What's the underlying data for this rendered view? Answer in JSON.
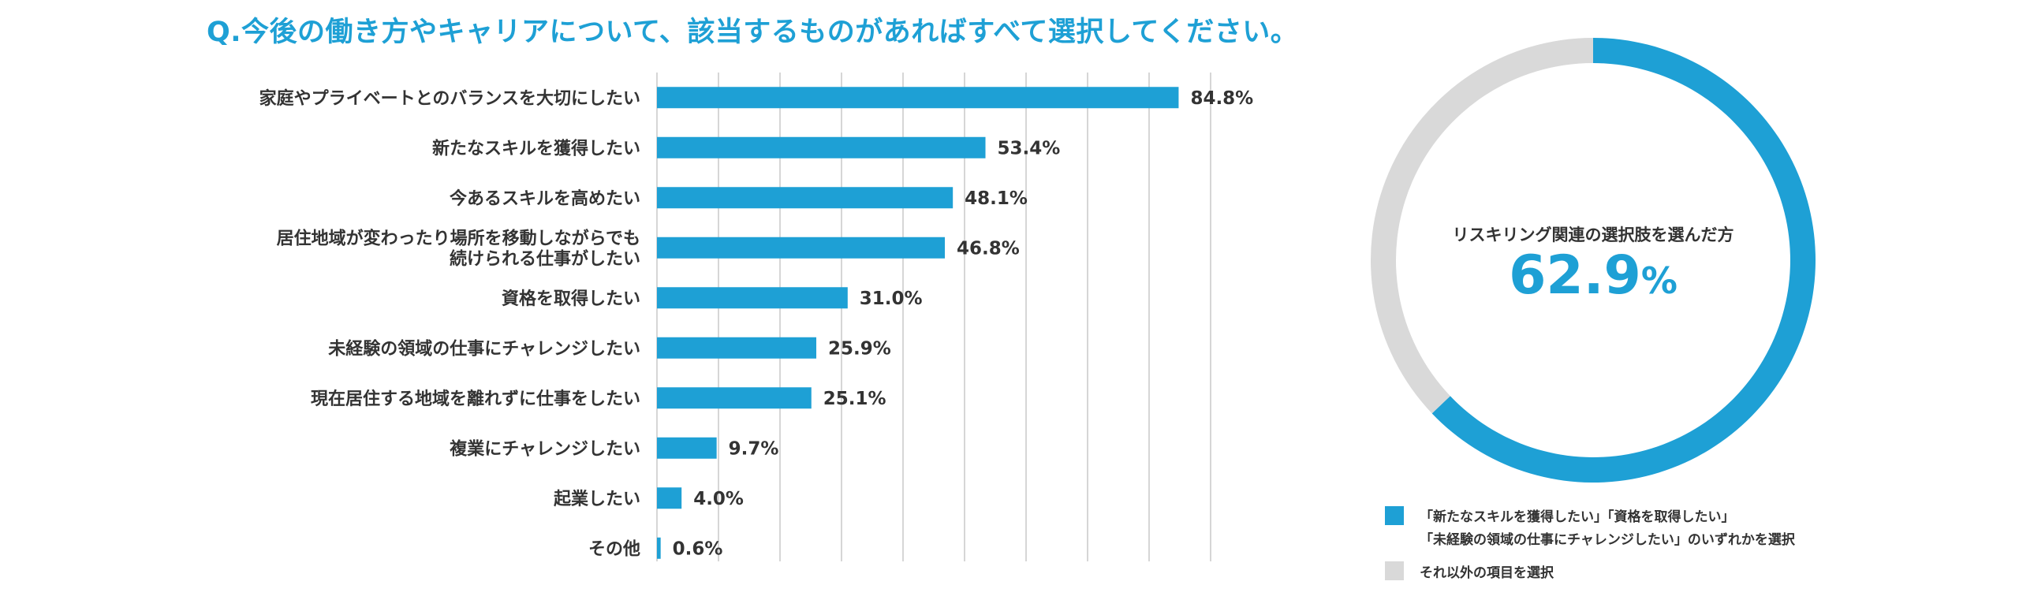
{
  "question": "Q.今後の働き方やキャリアについて、該当するものがあればすべて選択してください。",
  "colors": {
    "accent": "#1ea0d5",
    "grey": "#d9d9d9",
    "grid": "#c8c8c8",
    "text": "#333333"
  },
  "chart_data": [
    {
      "type": "bar",
      "orientation": "horizontal",
      "categories": [
        [
          "家庭やプライベートとのバランスを大切にしたい"
        ],
        [
          "新たなスキルを獲得したい"
        ],
        [
          "今あるスキルを高めたい"
        ],
        [
          "居住地域が変わったり場所を移動しながらでも",
          "続けられる仕事がしたい"
        ],
        [
          "資格を取得したい"
        ],
        [
          "未経験の領域の仕事にチャレンジしたい"
        ],
        [
          "現在居住する地域を離れずに仕事をしたい"
        ],
        [
          "複業にチャレンジしたい"
        ],
        [
          "起業したい"
        ],
        [
          "その他"
        ]
      ],
      "values": [
        84.8,
        53.4,
        48.1,
        46.8,
        31.0,
        25.9,
        25.1,
        9.7,
        4.0,
        0.6
      ],
      "value_labels": [
        "84.8%",
        "53.4%",
        "48.1%",
        "46.8%",
        "31.0%",
        "25.9%",
        "25.1%",
        "9.7%",
        "4.0%",
        "0.6%"
      ],
      "xlim": [
        0,
        90
      ],
      "grid_step": 10,
      "grid": true
    },
    {
      "type": "pie",
      "style": "donut",
      "center_caption": "リスキリング関連の選択肢を選んだ方",
      "center_value": "62.9",
      "center_unit": "%",
      "slices": [
        {
          "value": 62.9,
          "color": "#1ea0d5",
          "legend": [
            "「新たなスキルを獲得したい」「資格を取得したい」",
            "「未経験の領域の仕事にチャレンジしたい」のいずれかを選択"
          ]
        },
        {
          "value": 37.1,
          "color": "#d9d9d9",
          "legend": [
            "それ以外の項目を選択"
          ]
        }
      ]
    }
  ]
}
